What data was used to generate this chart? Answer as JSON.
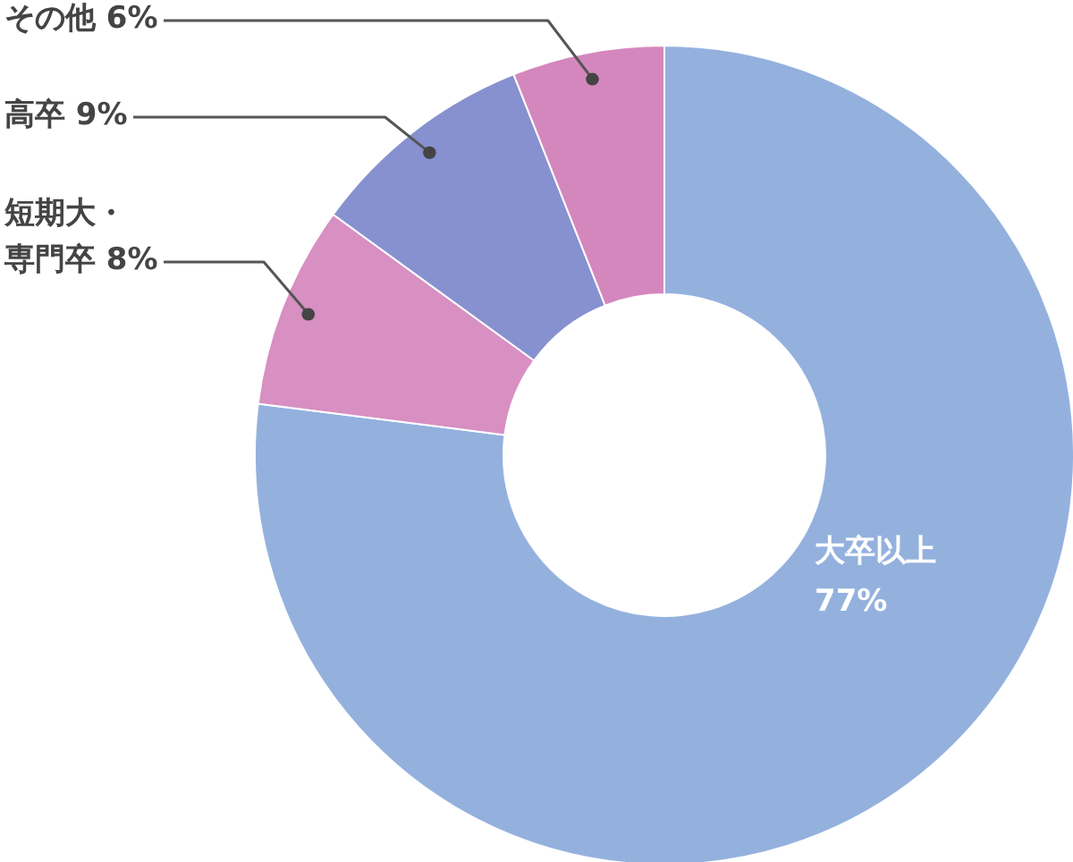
{
  "chart_data": {
    "type": "donut",
    "categories": [
      "大卒以上",
      "短期大・専門卒",
      "高卒",
      "その他"
    ],
    "values": [
      77,
      8,
      9,
      6
    ],
    "value_labels": [
      "77%",
      "8%",
      "9%",
      "6%"
    ],
    "colors": [
      "#94b1de",
      "#d88fc2",
      "#8791cf",
      "#d487bd"
    ],
    "data_labels": true
  }
}
